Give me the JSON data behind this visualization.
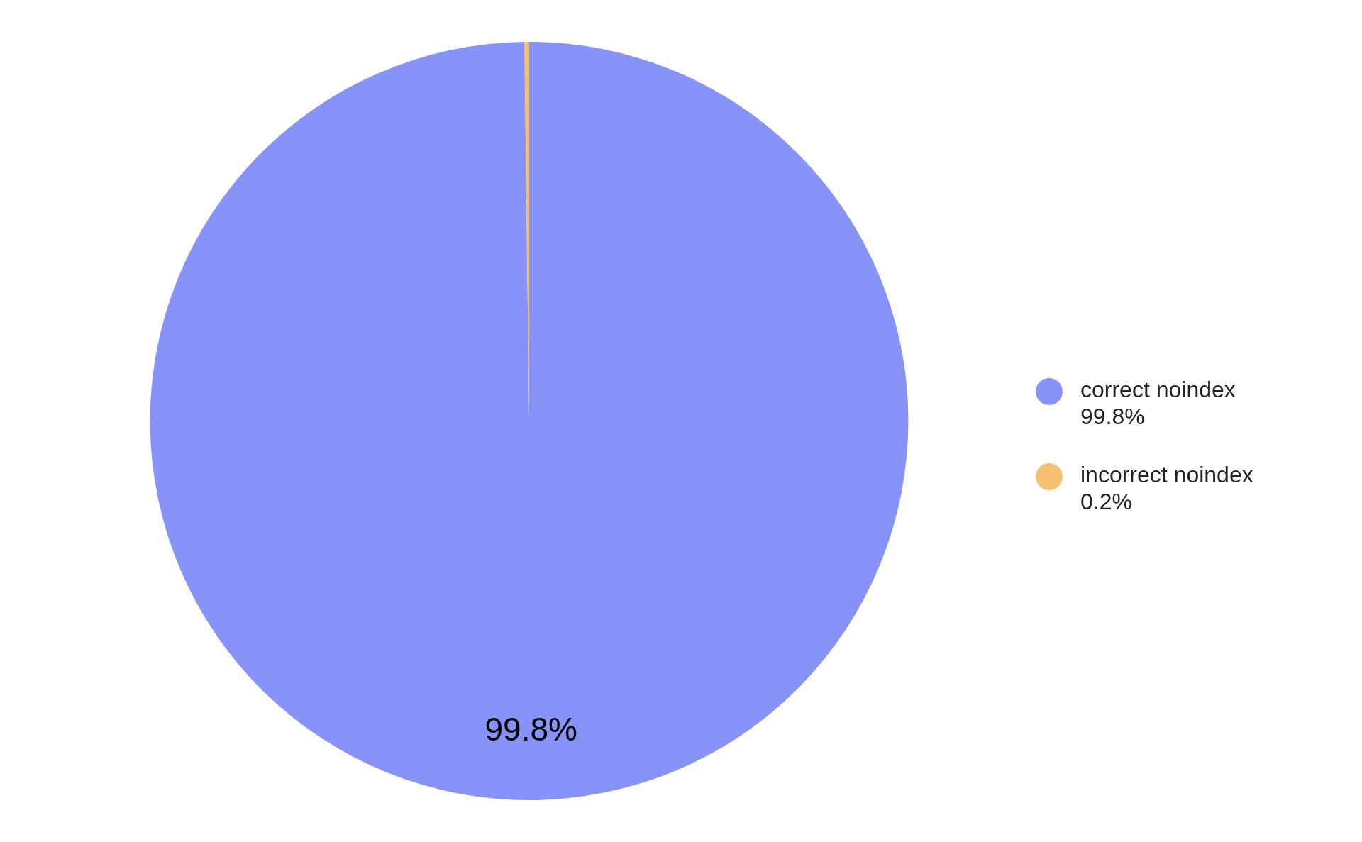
{
  "chart_data": {
    "type": "pie",
    "categories": [
      "correct noindex",
      "incorrect noindex"
    ],
    "values": [
      99.8,
      0.2
    ],
    "colors": [
      "#8893fa",
      "#f5c06f"
    ],
    "value_labels": [
      "99.8%",
      "0.2%"
    ],
    "legend": "right"
  }
}
